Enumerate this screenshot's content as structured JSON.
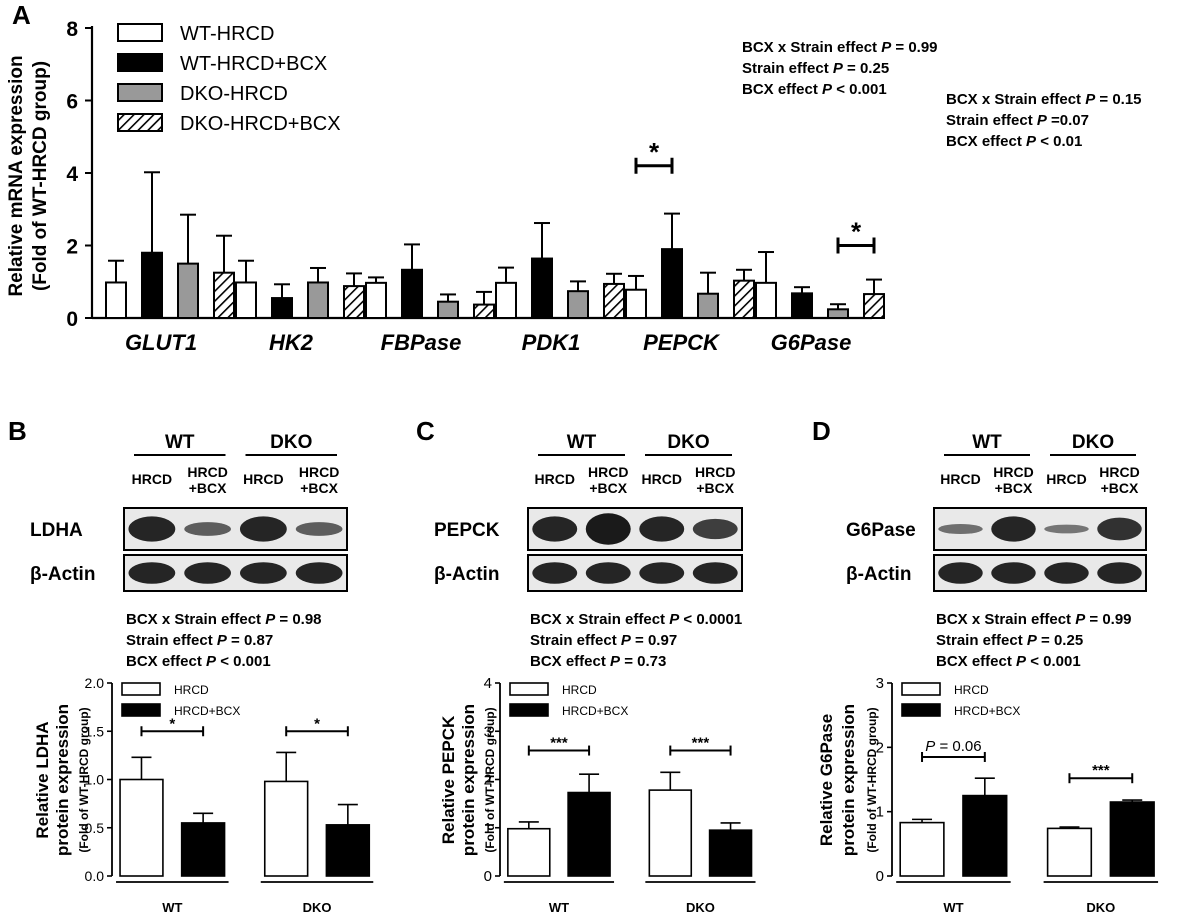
{
  "colors": {
    "wt_hrcd": "#ffffff",
    "wt_bcx": "#000000",
    "dko_hrcd": "#999999",
    "dko_bcx": "hatch",
    "axis": "#000000",
    "band": "#1a1a1a",
    "membrane": "#e9e9e9"
  },
  "chart_data": [
    {
      "panel": "A",
      "type": "bar",
      "categories": [
        "GLUT1",
        "HK2",
        "FBPase",
        "PDK1",
        "PEPCK",
        "G6Pase"
      ],
      "ylabel": [
        "Relative mRNA expression",
        "(Fold of WT-HRCD group)"
      ],
      "ylim": [
        0,
        8
      ],
      "yticks": [
        "0",
        "2",
        "4",
        "6",
        "8"
      ],
      "series": [
        {
          "name": "WT-HRCD",
          "values": [
            0.98,
            0.98,
            0.97,
            0.97,
            0.78,
            0.97
          ],
          "err": [
            0.6,
            0.6,
            0.15,
            0.42,
            0.38,
            0.85
          ]
        },
        {
          "name": "WT-HRCD+BCX",
          "values": [
            1.8,
            0.55,
            1.33,
            1.64,
            1.9,
            0.68
          ],
          "err": [
            2.22,
            0.38,
            0.7,
            0.98,
            0.98,
            0.17
          ]
        },
        {
          "name": "DKO-HRCD",
          "values": [
            1.5,
            0.98,
            0.45,
            0.74,
            0.67,
            0.24
          ],
          "err": [
            1.35,
            0.4,
            0.2,
            0.27,
            0.58,
            0.14
          ]
        },
        {
          "name": "DKO-HRCD+BCX",
          "values": [
            1.25,
            0.88,
            0.37,
            0.94,
            1.03,
            0.66
          ],
          "err": [
            1.02,
            0.35,
            0.35,
            0.28,
            0.3,
            0.4
          ]
        }
      ],
      "stats": [
        [
          "BCX x Strain effect ",
          "P",
          " = 0.99"
        ],
        [
          "Strain effect ",
          "P",
          " = 0.25"
        ],
        [
          "BCX effect ",
          "P",
          " < 0.001"
        ]
      ],
      "stats2": [
        [
          "BCX x Strain effect ",
          "P",
          " = 0.15"
        ],
        [
          "Strain effect ",
          "P",
          " =0.07"
        ],
        [
          "BCX effect ",
          "P",
          " < 0.01"
        ]
      ],
      "sig": [
        {
          "category": 4,
          "from": 0,
          "to": 1,
          "level": 4.2,
          "label": "*"
        },
        {
          "category": 5,
          "from": 2,
          "to": 3,
          "level": 2.0,
          "label": "*"
        }
      ]
    },
    {
      "panel": "B",
      "type": "bar",
      "groups": [
        "WT",
        "DKO"
      ],
      "lanes": [
        "HRCD",
        "HRCD\n+BCX",
        "HRCD",
        "HRCD\n+BCX"
      ],
      "blot": [
        {
          "label": "LDHA",
          "intensity": [
            1.0,
            0.55,
            1.0,
            0.55
          ]
        },
        {
          "label": "β-Actin",
          "intensity": [
            1.0,
            1.0,
            1.0,
            1.0
          ]
        }
      ],
      "stats": [
        [
          "BCX x Strain effect ",
          "P",
          " = 0.98"
        ],
        [
          "Strain effect ",
          "P",
          " = 0.87"
        ],
        [
          "BCX effect ",
          "P",
          " < 0.001"
        ]
      ],
      "ylabel": [
        "Relative LDHA",
        "protein expression",
        "(Fold of WT-HRCD group)"
      ],
      "ylim": [
        0,
        2.0
      ],
      "yticks": [
        "0.0",
        "0.5",
        "1.0",
        "1.5",
        "2.0"
      ],
      "legend": [
        "HRCD",
        "HRCD+BCX"
      ],
      "series": [
        {
          "name": "HRCD",
          "values": [
            1.0,
            0.98
          ],
          "err": [
            0.23,
            0.3
          ]
        },
        {
          "name": "HRCD+BCX",
          "values": [
            0.55,
            0.53
          ],
          "err": [
            0.1,
            0.21
          ]
        }
      ],
      "sig": [
        {
          "group": 0,
          "level": 1.5,
          "label": "*"
        },
        {
          "group": 1,
          "level": 1.5,
          "label": "*"
        }
      ]
    },
    {
      "panel": "C",
      "type": "bar",
      "groups": [
        "WT",
        "DKO"
      ],
      "lanes": [
        "HRCD",
        "HRCD\n+BCX",
        "HRCD",
        "HRCD\n+BCX"
      ],
      "blot": [
        {
          "label": "PEPCK",
          "intensity": [
            1.0,
            1.25,
            1.0,
            0.8
          ]
        },
        {
          "label": "β-Actin",
          "intensity": [
            1.0,
            1.0,
            1.0,
            1.0
          ]
        }
      ],
      "stats": [
        [
          "BCX x Strain effect ",
          "P",
          " < 0.0001"
        ],
        [
          "Strain effect ",
          "P",
          " = 0.97"
        ],
        [
          "BCX effect ",
          "P",
          " = 0.73"
        ]
      ],
      "ylabel": [
        "Relative PEPCK",
        "protein expression",
        "(Fold of WT-HRCD group)"
      ],
      "ylim": [
        0,
        4
      ],
      "yticks": [
        "0",
        "1",
        "2",
        "3",
        "4"
      ],
      "legend": [
        "HRCD",
        "HRCD+BCX"
      ],
      "series": [
        {
          "name": "HRCD",
          "values": [
            0.98,
            1.78
          ],
          "err": [
            0.14,
            0.37
          ]
        },
        {
          "name": "HRCD+BCX",
          "values": [
            1.73,
            0.95
          ],
          "err": [
            0.38,
            0.15
          ]
        }
      ],
      "sig": [
        {
          "group": 0,
          "level": 2.6,
          "label": "***"
        },
        {
          "group": 1,
          "level": 2.6,
          "label": "***"
        }
      ]
    },
    {
      "panel": "D",
      "type": "bar",
      "groups": [
        "WT",
        "DKO"
      ],
      "lanes": [
        "HRCD",
        "HRCD\n+BCX",
        "HRCD",
        "HRCD\n+BCX"
      ],
      "blot": [
        {
          "label": "G6Pase",
          "intensity": [
            0.4,
            1.0,
            0.35,
            0.9
          ]
        },
        {
          "label": "β-Actin",
          "intensity": [
            1.0,
            1.0,
            1.0,
            1.0
          ]
        }
      ],
      "stats": [
        [
          "BCX x Strain effect ",
          "P",
          " = 0.99"
        ],
        [
          "Strain effect ",
          "P",
          " = 0.25"
        ],
        [
          "BCX effect ",
          "P",
          " < 0.001"
        ]
      ],
      "ylabel": [
        "Relative G6Pase",
        "protein expression",
        "(Fold of WT-HRCD group)"
      ],
      "ylim": [
        0,
        3
      ],
      "yticks": [
        "0",
        "1",
        "2",
        "3"
      ],
      "legend": [
        "HRCD",
        "HRCD+BCX"
      ],
      "series": [
        {
          "name": "HRCD",
          "values": [
            0.83,
            0.74
          ],
          "err": [
            0.05,
            0.02
          ]
        },
        {
          "name": "HRCD+BCX",
          "values": [
            1.25,
            1.15
          ],
          "err": [
            0.27,
            0.03
          ]
        }
      ],
      "sig": [
        {
          "group": 0,
          "level": 1.85,
          "label": "",
          "p_label": [
            "P",
            " = 0.06"
          ]
        },
        {
          "group": 1,
          "level": 1.52,
          "label": "***"
        }
      ]
    }
  ]
}
